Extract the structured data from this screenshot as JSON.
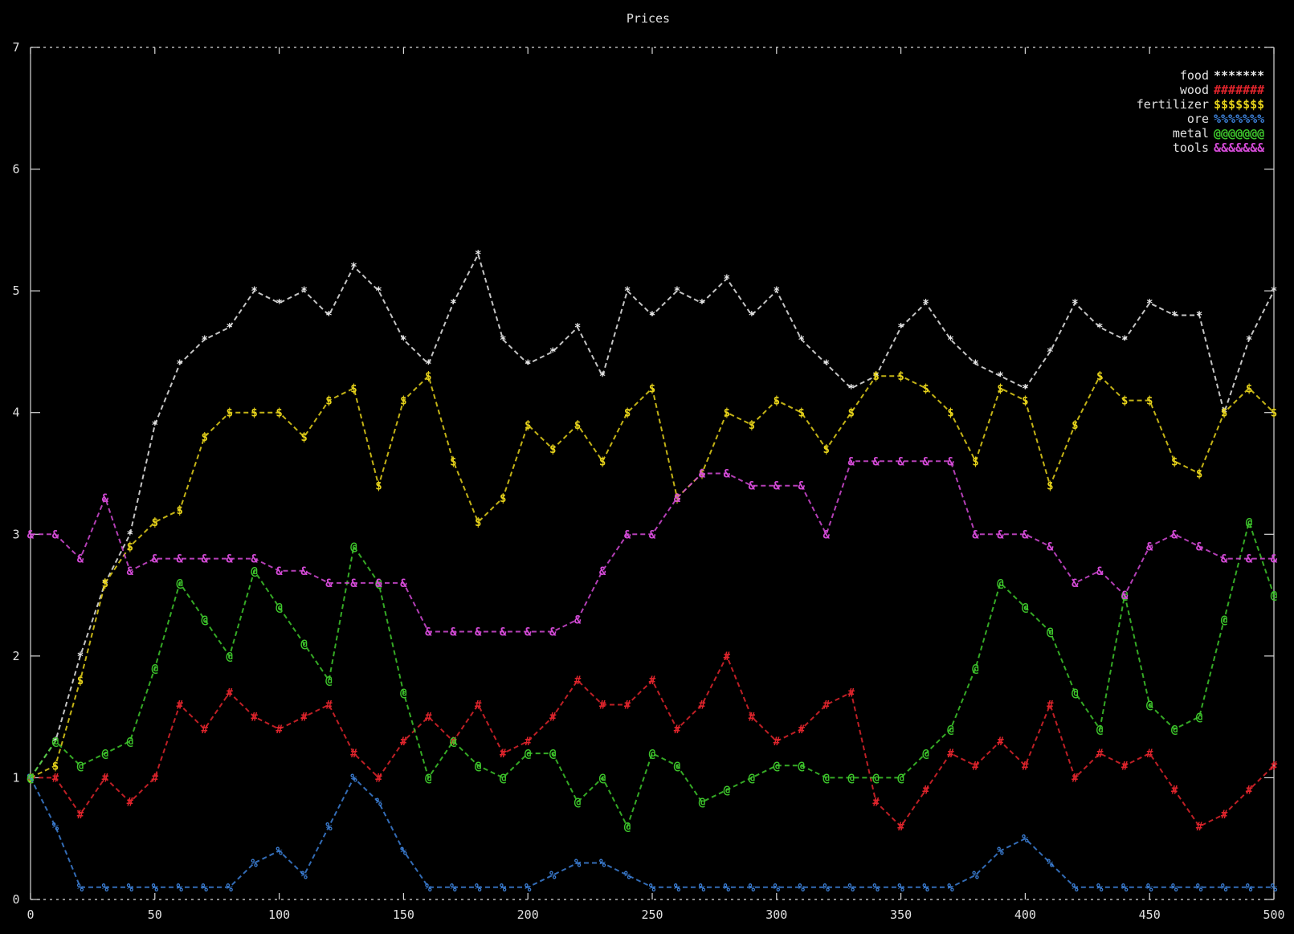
{
  "colors": {
    "background": "#000000",
    "frame": "#d9d9d9",
    "food": "#e8e8e8",
    "wood": "#e0242c",
    "fertilizer": "#e6d21a",
    "ore": "#3c7fd6",
    "metal": "#3ec82c",
    "tools": "#d34ad6"
  },
  "chart_data": {
    "type": "line",
    "title": "Prices",
    "xlabel": "",
    "ylabel": "",
    "xlim": [
      0,
      500
    ],
    "ylim": [
      0,
      7
    ],
    "x_ticks": [
      "0",
      "50",
      "100",
      "150",
      "200",
      "250",
      "300",
      "350",
      "400",
      "450",
      "500"
    ],
    "y_ticks": [
      "0",
      "1",
      "2",
      "3",
      "4",
      "5",
      "6",
      "7"
    ],
    "grid": false,
    "legend_position": "top-right",
    "x": [
      0,
      10,
      20,
      30,
      40,
      50,
      60,
      70,
      80,
      90,
      100,
      110,
      120,
      130,
      140,
      150,
      160,
      170,
      180,
      190,
      200,
      210,
      220,
      230,
      240,
      250,
      260,
      270,
      280,
      290,
      300,
      310,
      320,
      330,
      340,
      350,
      360,
      370,
      380,
      390,
      400,
      410,
      420,
      430,
      440,
      450,
      460,
      470,
      480,
      490,
      500
    ],
    "series": [
      {
        "name": "food",
        "marker": "*******",
        "color_key": "food",
        "values": [
          1.0,
          1.3,
          2.0,
          2.6,
          3.0,
          3.9,
          4.4,
          4.6,
          4.7,
          5.0,
          4.9,
          5.0,
          4.8,
          5.2,
          5.0,
          4.6,
          4.4,
          4.9,
          5.3,
          4.6,
          4.4,
          4.5,
          4.7,
          4.3,
          5.0,
          4.8,
          5.0,
          4.9,
          5.1,
          4.8,
          5.0,
          4.6,
          4.4,
          4.2,
          4.3,
          4.7,
          4.9,
          4.6,
          4.4,
          4.3,
          4.2,
          4.5,
          4.9,
          4.7,
          4.6,
          4.9,
          4.8,
          4.8,
          4.0,
          4.6,
          5.0
        ]
      },
      {
        "name": "wood",
        "marker": "#######",
        "color_key": "wood",
        "values": [
          1.0,
          1.0,
          0.7,
          1.0,
          0.8,
          1.0,
          1.6,
          1.4,
          1.7,
          1.5,
          1.4,
          1.5,
          1.6,
          1.2,
          1.0,
          1.3,
          1.5,
          1.3,
          1.6,
          1.2,
          1.3,
          1.5,
          1.8,
          1.6,
          1.6,
          1.8,
          1.4,
          1.6,
          2.0,
          1.5,
          1.3,
          1.4,
          1.6,
          1.7,
          0.8,
          0.6,
          0.9,
          1.2,
          1.1,
          1.3,
          1.1,
          1.6,
          1.0,
          1.2,
          1.1,
          1.2,
          0.9,
          0.6,
          0.7,
          0.9,
          1.1
        ]
      },
      {
        "name": "fertilizer",
        "marker": "$$$$$$$",
        "color_key": "fertilizer",
        "values": [
          1.0,
          1.1,
          1.8,
          2.6,
          2.9,
          3.1,
          3.2,
          3.8,
          4.0,
          4.0,
          4.0,
          3.8,
          4.1,
          4.2,
          3.4,
          4.1,
          4.3,
          3.6,
          3.1,
          3.3,
          3.9,
          3.7,
          3.9,
          3.6,
          4.0,
          4.2,
          3.3,
          3.5,
          4.0,
          3.9,
          4.1,
          4.0,
          3.7,
          4.0,
          4.3,
          4.3,
          4.2,
          4.0,
          3.6,
          4.2,
          4.1,
          3.4,
          3.9,
          4.3,
          4.1,
          4.1,
          3.6,
          3.5,
          4.0,
          4.2,
          4.0
        ]
      },
      {
        "name": "ore",
        "marker": "%%%%%%%",
        "color_key": "ore",
        "values": [
          1.0,
          0.6,
          0.1,
          0.1,
          0.1,
          0.1,
          0.1,
          0.1,
          0.1,
          0.3,
          0.4,
          0.2,
          0.6,
          1.0,
          0.8,
          0.4,
          0.1,
          0.1,
          0.1,
          0.1,
          0.1,
          0.2,
          0.3,
          0.3,
          0.2,
          0.1,
          0.1,
          0.1,
          0.1,
          0.1,
          0.1,
          0.1,
          0.1,
          0.1,
          0.1,
          0.1,
          0.1,
          0.1,
          0.2,
          0.4,
          0.5,
          0.3,
          0.1,
          0.1,
          0.1,
          0.1,
          0.1,
          0.1,
          0.1,
          0.1,
          0.1
        ]
      },
      {
        "name": "metal",
        "marker": "@@@@@@@",
        "color_key": "metal",
        "values": [
          1.0,
          1.3,
          1.1,
          1.2,
          1.3,
          1.9,
          2.6,
          2.3,
          2.0,
          2.7,
          2.4,
          2.1,
          1.8,
          2.9,
          2.6,
          1.7,
          1.0,
          1.3,
          1.1,
          1.0,
          1.2,
          1.2,
          0.8,
          1.0,
          0.6,
          1.2,
          1.1,
          0.8,
          0.9,
          1.0,
          1.1,
          1.1,
          1.0,
          1.0,
          1.0,
          1.0,
          1.2,
          1.4,
          1.9,
          2.6,
          2.4,
          2.2,
          1.7,
          1.4,
          2.5,
          1.6,
          1.4,
          1.5,
          2.3,
          3.1,
          2.5
        ]
      },
      {
        "name": "tools",
        "marker": "&&&&&&&",
        "color_key": "tools",
        "values": [
          3.0,
          3.0,
          2.8,
          3.3,
          2.7,
          2.8,
          2.8,
          2.8,
          2.8,
          2.8,
          2.7,
          2.7,
          2.6,
          2.6,
          2.6,
          2.6,
          2.2,
          2.2,
          2.2,
          2.2,
          2.2,
          2.2,
          2.3,
          2.7,
          3.0,
          3.0,
          3.3,
          3.5,
          3.5,
          3.4,
          3.4,
          3.4,
          3.0,
          3.6,
          3.6,
          3.6,
          3.6,
          3.6,
          3.0,
          3.0,
          3.0,
          2.9,
          2.6,
          2.7,
          2.5,
          2.9,
          3.0,
          2.9,
          2.8,
          2.8,
          2.8
        ]
      }
    ]
  }
}
